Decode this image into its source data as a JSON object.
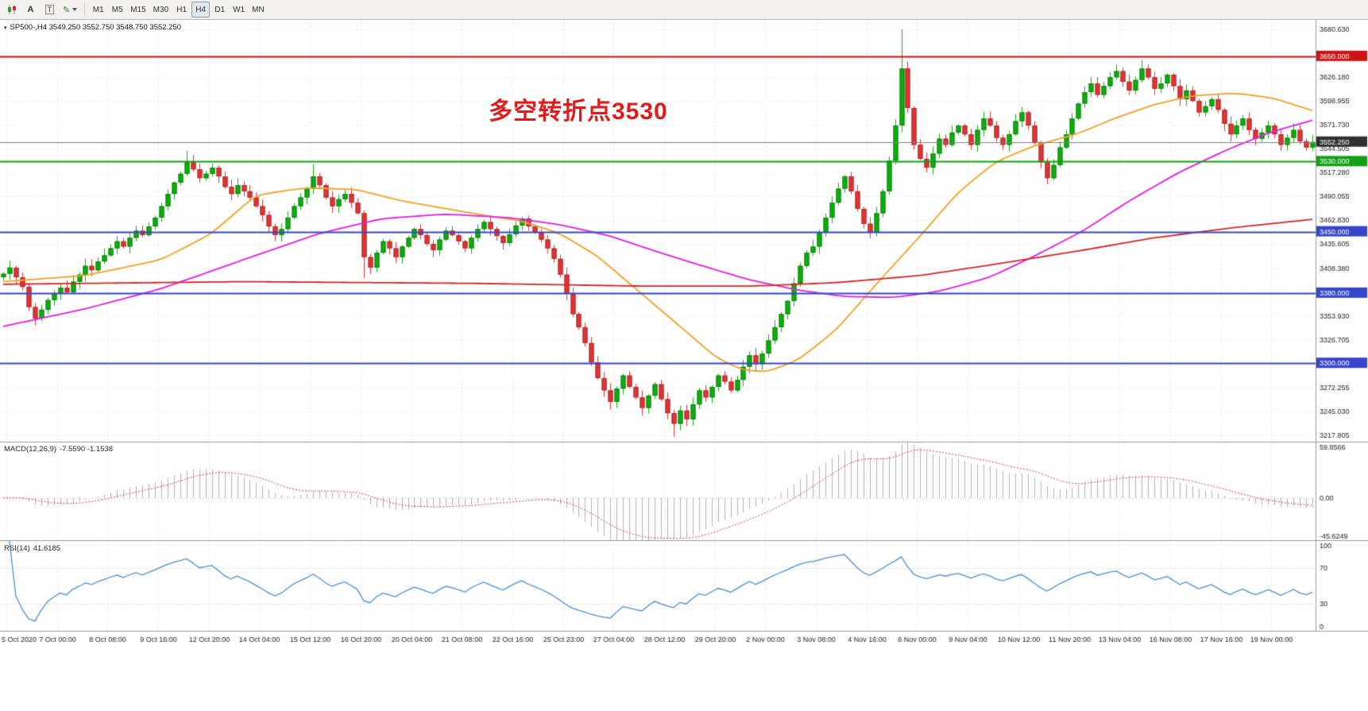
{
  "toolbar": {
    "tool_a": "A",
    "tool_t": "T",
    "timeframes": [
      "M1",
      "M5",
      "M15",
      "M30",
      "H1",
      "H4",
      "D1",
      "W1",
      "MN"
    ],
    "active_timeframe": "H4"
  },
  "chart": {
    "symbol_ohlc": "SP500-,H4 3549.250 3552.750 3548.750 3552.250",
    "annotation": "多空转折点3530"
  },
  "chart_data": {
    "type": "candlestick",
    "symbol": "SP500-",
    "timeframe": "H4",
    "current_bar": {
      "open": 3549.25,
      "high": 3552.75,
      "low": 3548.75,
      "close": 3552.25
    },
    "colors": {
      "bull": "#0fae0f",
      "bear": "#e23434",
      "bull_stroke": "#0a810a",
      "bear_stroke": "#b02828",
      "background": "#ffffff"
    },
    "candles": {
      "closes": [
        3402,
        3409,
        3398,
        3387,
        3364,
        3351,
        3361,
        3372,
        3379,
        3386,
        3381,
        3393,
        3401,
        3411,
        3406,
        3416,
        3423,
        3431,
        3439,
        3433,
        3443,
        3451,
        3446,
        3456,
        3466,
        3479,
        3493,
        3506,
        3516,
        3529,
        3521,
        3511,
        3516,
        3523,
        3513,
        3501,
        3493,
        3503,
        3496,
        3489,
        3479,
        3469,
        3456,
        3446,
        3453,
        3466,
        3479,
        3489,
        3499,
        3513,
        3503,
        3489,
        3479,
        3487,
        3493,
        3483,
        3471,
        3421,
        3409,
        3426,
        3439,
        3431,
        3421,
        3433,
        3443,
        3453,
        3446,
        3436,
        3429,
        3441,
        3451,
        3446,
        3439,
        3431,
        3443,
        3453,
        3461,
        3453,
        3445,
        3437,
        3447,
        3457,
        3465,
        3456,
        3449,
        3441,
        3431,
        3419,
        3401,
        3379,
        3356,
        3341,
        3323,
        3301,
        3283,
        3269,
        3256,
        3271,
        3286,
        3273,
        3261,
        3249,
        3263,
        3276,
        3259,
        3243,
        3231,
        3246,
        3236,
        3253,
        3269,
        3261,
        3273,
        3286,
        3279,
        3269,
        3281,
        3296,
        3309,
        3299,
        3311,
        3326,
        3341,
        3356,
        3371,
        3391,
        3411,
        3426,
        3433,
        3449,
        3466,
        3483,
        3499,
        3513,
        3496,
        3476,
        3459,
        3449,
        3471,
        3496,
        3531,
        3571,
        3636,
        3591,
        3549,
        3533,
        3523,
        3539,
        3556,
        3549,
        3563,
        3571,
        3561,
        3549,
        3566,
        3579,
        3571,
        3557,
        3549,
        3561,
        3576,
        3586,
        3571,
        3551,
        3529,
        3511,
        3526,
        3546,
        3561,
        3579,
        3596,
        3609,
        3619,
        3606,
        3616,
        3626,
        3633,
        3621,
        3611,
        3623,
        3636,
        3626,
        3613,
        3619,
        3629,
        3616,
        3601,
        3611,
        3599,
        3586,
        3593,
        3601,
        3589,
        3573,
        3561,
        3571,
        3579,
        3566,
        3556,
        3563,
        3571,
        3561,
        3549,
        3557,
        3566,
        3553,
        3546,
        3552.25
      ],
      "high_overrides": {
        "29": 3542,
        "49": 3527,
        "142": 3680.6,
        "161": 3592,
        "176": 3641,
        "180": 3646
      },
      "low_overrides": {
        "5": 3343,
        "57": 3397,
        "96": 3247,
        "101": 3240,
        "106": 3216.2,
        "165": 3504
      }
    },
    "price_axis": {
      "ylim": [
        3210.5,
        3691.5
      ],
      "tick_step": 27.225,
      "ticks": [
        3680.63,
        3626.18,
        3598.955,
        3571.73,
        3544.505,
        3517.28,
        3490.055,
        3462.83,
        3435.605,
        3408.38,
        3353.93,
        3326.705,
        3272.255,
        3245.03,
        3217.805
      ],
      "lines": [
        {
          "price": 3650.0,
          "label": "3650.000",
          "color": "#cc1414"
        },
        {
          "price": 3530.0,
          "label": "3530.000",
          "color": "#14a014"
        },
        {
          "price": 3450.0,
          "label": "3450.000",
          "color": "#3646c8"
        },
        {
          "price": 3380.0,
          "label": "3380.000",
          "color": "#3646c8"
        },
        {
          "price": 3300.0,
          "label": "3300.000",
          "color": "#3646c8"
        }
      ],
      "bid": {
        "price": 3552.25,
        "label": "3552.250",
        "bg": "#2f2f2f"
      }
    },
    "x_axis": {
      "labels": [
        "5 Oct 2020",
        "7 Oct 00:00",
        "8 Oct 08:00",
        "9 Oct 16:00",
        "12 Oct 20:00",
        "14 Oct 04:00",
        "15 Oct 12:00",
        "16 Oct 20:00",
        "20 Oct 04:00",
        "21 Oct 08:00",
        "22 Oct 16:00",
        "25 Oct 23:00",
        "27 Oct 04:00",
        "28 Oct 12:00",
        "29 Oct 20:00",
        "2 Nov 00:00",
        "3 Nov 08:00",
        "4 Nov 16:00",
        "6 Nov 00:00",
        "9 Nov 04:00",
        "10 Nov 12:00",
        "11 Nov 20:00",
        "13 Nov 04:00",
        "16 Nov 08:00",
        "17 Nov 16:00",
        "19 Nov 00:00"
      ]
    },
    "moving_averages": [
      {
        "name": "ma-fast",
        "color": "#efa32a",
        "anchors": [
          [
            0,
            3393
          ],
          [
            13,
            3400
          ],
          [
            25,
            3418
          ],
          [
            33,
            3448
          ],
          [
            40,
            3492
          ],
          [
            48,
            3500
          ],
          [
            56,
            3498
          ],
          [
            63,
            3485
          ],
          [
            75,
            3470
          ],
          [
            82,
            3462
          ],
          [
            88,
            3448
          ],
          [
            94,
            3422
          ],
          [
            100,
            3385
          ],
          [
            107,
            3342
          ],
          [
            113,
            3305
          ],
          [
            117,
            3292
          ],
          [
            121,
            3290
          ],
          [
            126,
            3305
          ],
          [
            132,
            3340
          ],
          [
            138,
            3390
          ],
          [
            145,
            3445
          ],
          [
            151,
            3495
          ],
          [
            157,
            3530
          ],
          [
            163,
            3548
          ],
          [
            170,
            3562
          ],
          [
            176,
            3580
          ],
          [
            182,
            3595
          ],
          [
            188,
            3605
          ],
          [
            195,
            3608
          ],
          [
            201,
            3602
          ],
          [
            207,
            3588
          ]
        ]
      },
      {
        "name": "ma-mid",
        "color": "#e020e0",
        "anchors": [
          [
            0,
            3342
          ],
          [
            13,
            3362
          ],
          [
            25,
            3385
          ],
          [
            38,
            3418
          ],
          [
            50,
            3448
          ],
          [
            60,
            3465
          ],
          [
            70,
            3470
          ],
          [
            80,
            3466
          ],
          [
            88,
            3458
          ],
          [
            96,
            3445
          ],
          [
            103,
            3428
          ],
          [
            111,
            3410
          ],
          [
            118,
            3395
          ],
          [
            126,
            3383
          ],
          [
            133,
            3376
          ],
          [
            141,
            3375
          ],
          [
            148,
            3382
          ],
          [
            156,
            3398
          ],
          [
            163,
            3422
          ],
          [
            171,
            3452
          ],
          [
            178,
            3485
          ],
          [
            186,
            3518
          ],
          [
            194,
            3545
          ],
          [
            201,
            3565
          ],
          [
            207,
            3577
          ]
        ]
      },
      {
        "name": "ma-slow",
        "color": "#d02828",
        "anchors": [
          [
            0,
            3390
          ],
          [
            38,
            3393
          ],
          [
            75,
            3391
          ],
          [
            100,
            3388
          ],
          [
            119,
            3388
          ],
          [
            132,
            3392
          ],
          [
            145,
            3400
          ],
          [
            157,
            3413
          ],
          [
            170,
            3428
          ],
          [
            182,
            3443
          ],
          [
            195,
            3455
          ],
          [
            207,
            3464
          ]
        ]
      }
    ],
    "indicators": {
      "macd": {
        "label": "MACD(12,26,9)",
        "values": "-7.5590 -1.1538",
        "params": [
          12,
          26,
          9
        ],
        "ylim": [
          -45.6249,
          59.8566
        ],
        "axis_labels": [
          "59.8566",
          "0.00",
          "-45.6249"
        ],
        "histogram_color": "#b2b2b2",
        "signal_color": "#d04545"
      },
      "rsi": {
        "label": "RSI(14)",
        "value": "41.6185",
        "period": 14,
        "levels": [
          70,
          30
        ],
        "axis_labels": [
          "100",
          "70",
          "30",
          "0"
        ],
        "line_color": "#4a90d2"
      }
    }
  }
}
